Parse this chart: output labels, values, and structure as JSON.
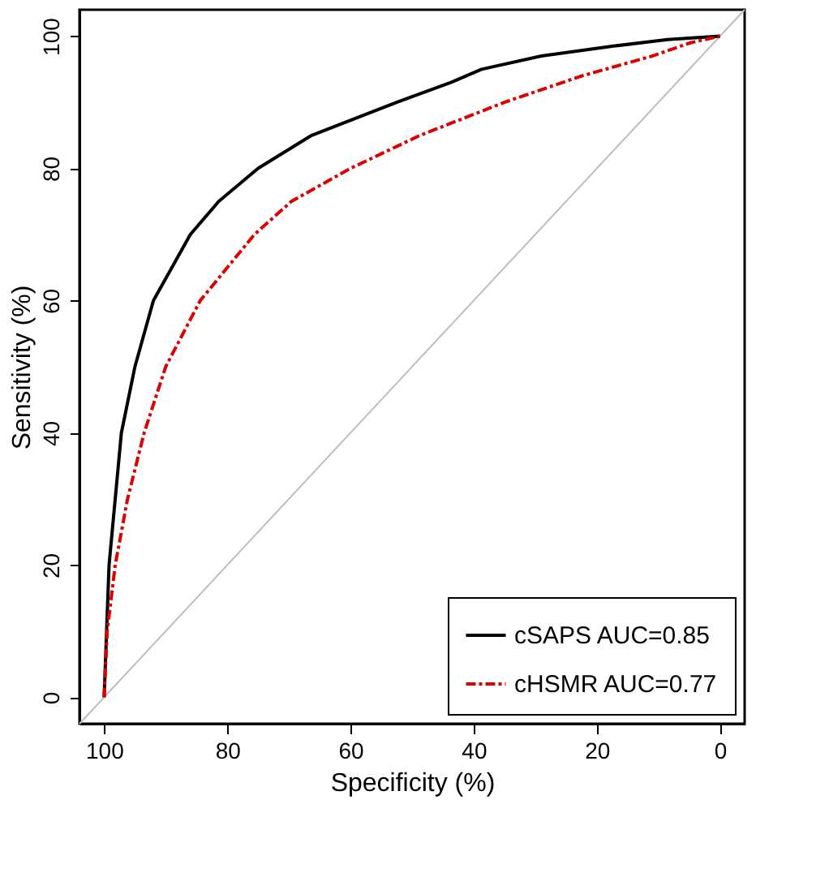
{
  "chart_data": {
    "type": "line",
    "xlabel": "Specificity (%)",
    "ylabel": "Sensitivity (%)",
    "xlim": [
      104,
      -4
    ],
    "ylim": [
      -4,
      104
    ],
    "xticks": [
      100,
      80,
      60,
      40,
      20,
      0
    ],
    "yticks": [
      0,
      20,
      40,
      60,
      80,
      100
    ],
    "grid": false,
    "legend": "bottom right",
    "series": [
      {
        "name": "cSAPS AUC=0.85",
        "color": "#000000",
        "line_style": "solid",
        "x": [
          100,
          99.2,
          97.2,
          95,
          92,
          86,
          81.4,
          75,
          66.3,
          52.5,
          43.7,
          38.7,
          29,
          17.3,
          8.5,
          0
        ],
        "values": [
          0,
          20,
          40,
          50,
          60,
          70,
          75,
          80,
          85,
          90,
          93,
          95,
          97,
          98.5,
          99.5,
          100
        ]
      },
      {
        "name": "cHSMR AUC=0.77",
        "color": "#dd0000",
        "line_style": "dashed",
        "x": [
          100,
          99.5,
          98.2,
          96.2,
          93.5,
          90,
          84.4,
          75.6,
          69.6,
          60,
          48.7,
          35,
          22.4,
          11,
          4.8,
          0
        ],
        "values": [
          0,
          10,
          20,
          30,
          40,
          50,
          60,
          70,
          75,
          80,
          85,
          90,
          94,
          97,
          99,
          100
        ]
      },
      {
        "type": "line",
        "color": "#bebebe",
        "line_style": "solid",
        "x": [
          104,
          -4
        ],
        "values": [
          -4,
          104
        ]
      }
    ]
  }
}
